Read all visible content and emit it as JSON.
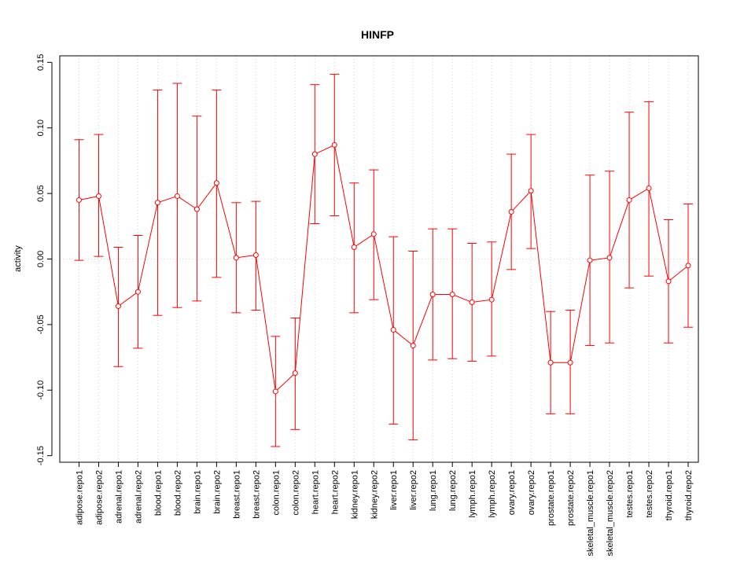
{
  "chart_data": {
    "type": "line",
    "title": "HINFP",
    "xlabel": "",
    "ylabel": "activity",
    "ylim": [
      -0.155,
      0.155
    ],
    "yticks": [
      -0.15,
      -0.1,
      -0.05,
      0.0,
      0.05,
      0.1,
      0.15
    ],
    "ytick_labels": [
      "-0.15",
      "-0.10",
      "-0.05",
      "0.00",
      "0.05",
      "0.10",
      "0.15"
    ],
    "grid": true,
    "colors": {
      "series": "#ff0000",
      "grid": "#d3d3d3",
      "axis": "#000000"
    },
    "categories": [
      "adipose.repo1",
      "adipose.repo2",
      "adrenal.repo1",
      "adrenal.repo2",
      "blood.repo1",
      "blood.repo2",
      "brain.repo1",
      "brain.repo2",
      "breast.repo1",
      "breast.repo2",
      "colon.repo1",
      "colon.repo2",
      "heart.repo1",
      "heart.repo2",
      "kidney.repo1",
      "kidney.repo2",
      "liver.repo1",
      "liver.repo2",
      "lung.repo1",
      "lung.repo2",
      "lymph.repo1",
      "lymph.repo2",
      "ovary.repo1",
      "ovary.repo2",
      "prostate.repo1",
      "prostate.repo2",
      "skeletal_muscle.repo1",
      "skeletal_muscle.repo2",
      "testes.repo1",
      "testes.repo2",
      "thyroid.repo1",
      "thyroid.repo2"
    ],
    "series": [
      {
        "name": "activity",
        "values": [
          0.045,
          0.048,
          -0.036,
          -0.025,
          0.043,
          0.048,
          0.038,
          0.058,
          0.001,
          0.003,
          -0.101,
          -0.087,
          0.08,
          0.087,
          0.009,
          0.019,
          -0.054,
          -0.066,
          -0.027,
          -0.027,
          -0.033,
          -0.031,
          0.036,
          0.052,
          -0.079,
          -0.079,
          -0.001,
          0.001,
          0.045,
          0.054,
          -0.017,
          -0.005
        ],
        "upper": [
          0.091,
          0.095,
          0.009,
          0.018,
          0.129,
          0.134,
          0.109,
          0.129,
          0.043,
          0.044,
          -0.059,
          -0.045,
          0.133,
          0.141,
          0.058,
          0.068,
          0.017,
          0.006,
          0.023,
          0.023,
          0.012,
          0.013,
          0.08,
          0.095,
          -0.04,
          -0.039,
          0.064,
          0.067,
          0.112,
          0.12,
          0.03,
          0.042
        ],
        "lower": [
          -0.001,
          0.002,
          -0.082,
          -0.068,
          -0.043,
          -0.037,
          -0.032,
          -0.014,
          -0.041,
          -0.039,
          -0.143,
          -0.13,
          0.027,
          0.033,
          -0.041,
          -0.031,
          -0.126,
          -0.138,
          -0.077,
          -0.076,
          -0.078,
          -0.074,
          -0.008,
          0.008,
          -0.118,
          -0.118,
          -0.066,
          -0.064,
          -0.022,
          -0.013,
          -0.064,
          -0.052
        ]
      }
    ]
  }
}
